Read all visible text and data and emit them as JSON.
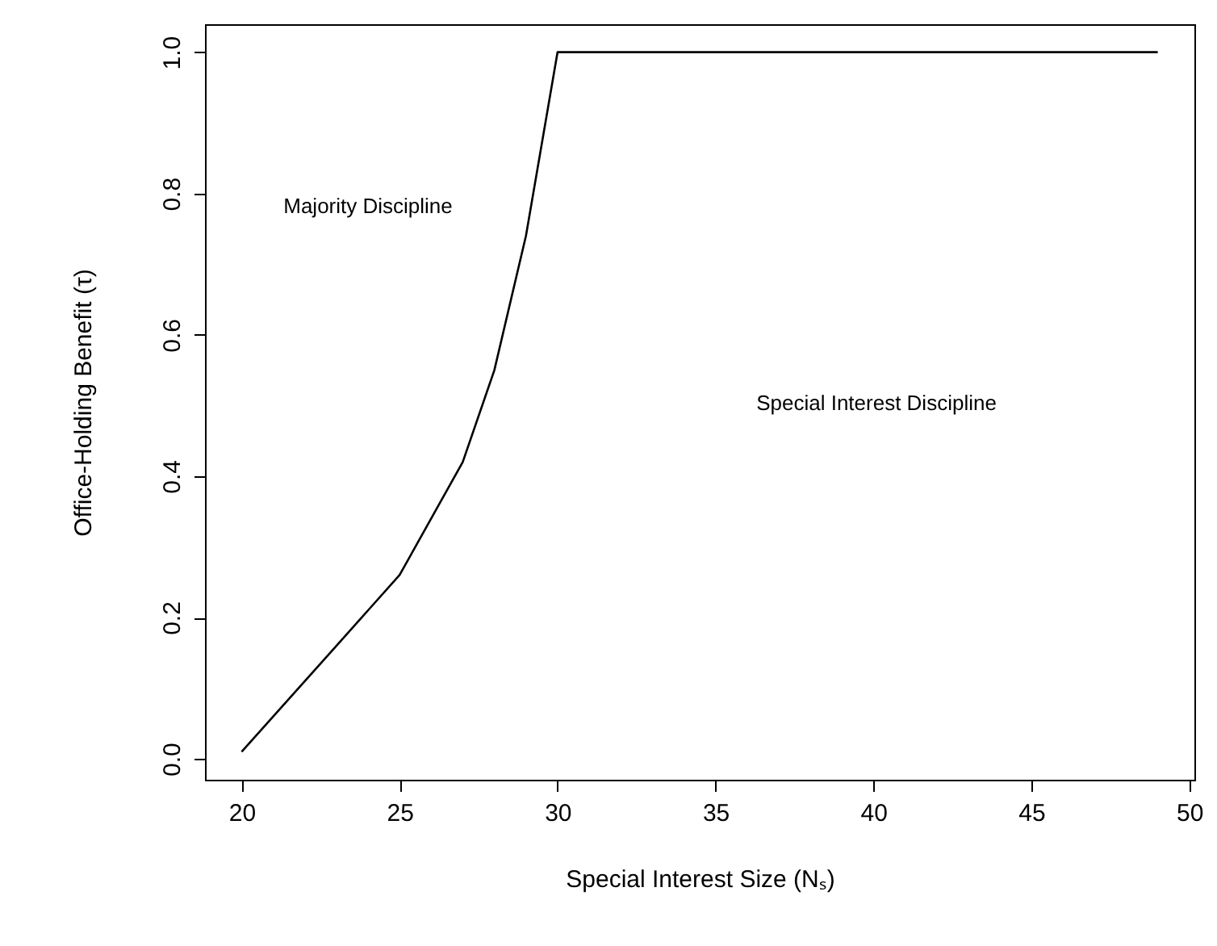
{
  "chart_data": {
    "type": "line",
    "xlabel": "Special Interest Size (Nₛ)",
    "ylabel": "Office-Holding Benefit (τ)",
    "x": [
      20,
      21,
      22,
      23,
      24,
      25,
      26,
      27,
      28,
      29,
      30,
      49
    ],
    "series": [
      {
        "color": "#000000",
        "values": [
          0.01,
          0.06,
          0.11,
          0.16,
          0.21,
          0.26,
          0.34,
          0.42,
          0.55,
          0.74,
          1.0,
          1.0
        ]
      }
    ],
    "xlim": [
      18.84,
      50.16
    ],
    "xticks": [
      20,
      25,
      30,
      35,
      40,
      45,
      50
    ],
    "ylim": [
      -0.0296,
      1.0396
    ],
    "yticks": [
      {
        "value": 0,
        "label": "0.0"
      },
      0.2,
      0.4,
      0.6,
      0.8,
      {
        "value": 1,
        "label": "1.0"
      }
    ],
    "annotations": [
      "Majority Discipline",
      "Special Interest Discipline"
    ],
    "grid": false,
    "marker": "none",
    "line_style": "solid"
  }
}
